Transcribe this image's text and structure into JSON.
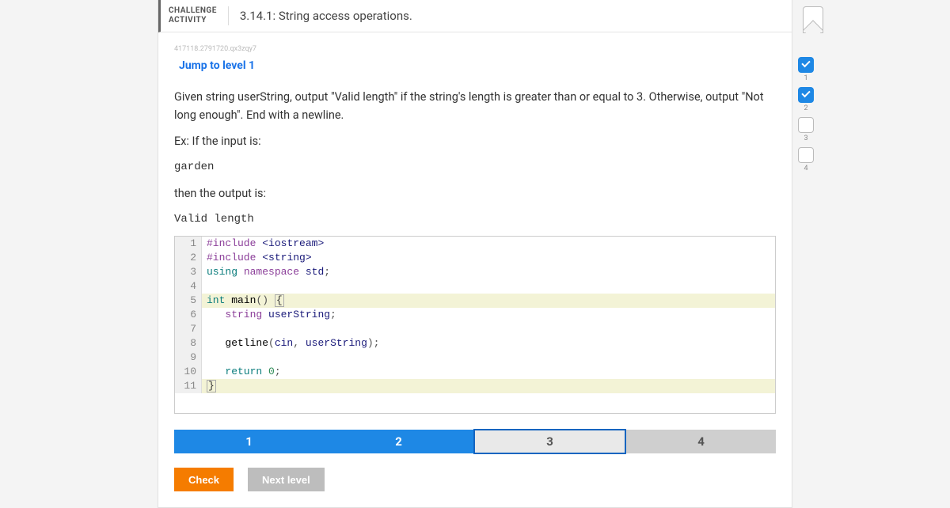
{
  "header": {
    "label_line1": "CHALLENGE",
    "label_line2": "ACTIVITY",
    "title": "3.14.1: String access operations."
  },
  "meta_id": "417118.2791720.qx3zqy7",
  "jump_link": "Jump to level 1",
  "prompt": {
    "p1": "Given string userString, output \"Valid length\" if the string's length is greater than or equal to 3. Otherwise, output \"Not long enough\". End with a newline.",
    "p2": "Ex: If the input is:",
    "ex_in": "garden",
    "p3": "then the output is:",
    "ex_out": "Valid length"
  },
  "code": {
    "lines": [
      {
        "n": "1",
        "html": "<span class='tok-pre'>#include</span> <span class='tok-inc'>&lt;iostream&gt;</span>"
      },
      {
        "n": "2",
        "html": "<span class='tok-pre'>#include</span> <span class='tok-inc'>&lt;string&gt;</span>"
      },
      {
        "n": "3",
        "html": "<span class='tok-kw'>using</span> <span class='tok-kw2'>namespace</span> <span class='tok-name'>std</span><span class='tok-punc'>;</span>"
      },
      {
        "n": "4",
        "html": ""
      },
      {
        "n": "5",
        "html": "<span class='tok-kw'>int</span> <span class='tok-fn'>main</span><span class='tok-punc'>()</span> <span class='bracket-box'>{</span>",
        "hl": true
      },
      {
        "n": "6",
        "html": "   <span class='tok-kw2'>string</span> <span class='tok-name'>userString</span><span class='tok-punc'>;</span>"
      },
      {
        "n": "7",
        "html": ""
      },
      {
        "n": "8",
        "html": "   <span class='tok-fn'>getline</span><span class='tok-punc'>(</span><span class='tok-name'>cin</span><span class='tok-punc'>,</span> <span class='tok-name'>userString</span><span class='tok-punc'>);</span>"
      },
      {
        "n": "9",
        "html": ""
      },
      {
        "n": "10",
        "html": "   <span class='tok-kw'>return</span> <span class='tok-num'>0</span><span class='tok-punc'>;</span>"
      },
      {
        "n": "11",
        "html": "<span class='bracket-box'>}</span>",
        "hl": true
      }
    ]
  },
  "stepper": {
    "steps": [
      {
        "label": "1",
        "state": "filled"
      },
      {
        "label": "2",
        "state": "filled"
      },
      {
        "label": "3",
        "state": "current"
      },
      {
        "label": "4",
        "state": "idle"
      }
    ]
  },
  "footer": {
    "check": "Check",
    "next": "Next level"
  },
  "progress": [
    {
      "n": "1",
      "done": true
    },
    {
      "n": "2",
      "done": true
    },
    {
      "n": "3",
      "done": false
    },
    {
      "n": "4",
      "done": false
    }
  ],
  "colors": {
    "accent_blue": "#1e88e5",
    "accent_orange": "#f57c00",
    "bg": "#f4f4f4"
  }
}
